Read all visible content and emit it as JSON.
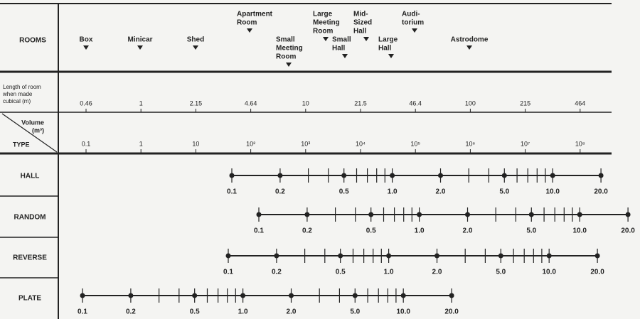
{
  "rooms_header": "ROOMS",
  "rooms": [
    [
      "Box"
    ],
    [
      "Minicar"
    ],
    [
      "Shed"
    ],
    [
      "Apartment",
      "Room"
    ],
    [
      "Small",
      "Meeting",
      "Room"
    ],
    [
      "Large",
      "Meeting",
      "Room"
    ],
    [
      "Small",
      "Hall"
    ],
    [
      "Mid-",
      "Sized",
      "Hall"
    ],
    [
      "Large",
      "Hall"
    ],
    [
      "Audi-",
      "torium"
    ],
    [
      "Astrodome"
    ]
  ],
  "length_header": [
    "Length of room",
    "when made",
    "cubical (m)"
  ],
  "lengths": [
    "0.46",
    "1",
    "2.15",
    "4.64",
    "10",
    "21.5",
    "46.4",
    "100",
    "215",
    "464"
  ],
  "type_header": {
    "volume": "Volume",
    "unit": "(m³)",
    "type": "TYPE"
  },
  "types": [
    "0.1",
    "1",
    "10",
    "10²",
    "10³",
    "10⁴",
    "10⁵",
    "10⁶",
    "10⁷",
    "10⁸"
  ],
  "scales": [
    {
      "name": "HALL",
      "labels": [
        "0.1",
        "0.2",
        "0.5",
        "1.0",
        "2.0",
        "5.0",
        "10.0",
        "20.0"
      ]
    },
    {
      "name": "RANDOM",
      "labels": [
        "0.1",
        "0.2",
        "0.5",
        "1.0",
        "2.0",
        "5.0",
        "10.0",
        "20.0"
      ]
    },
    {
      "name": "REVERSE",
      "labels": [
        "0.1",
        "0.2",
        "0.5",
        "1.0",
        "2.0",
        "5.0",
        "10.0",
        "20.0"
      ]
    },
    {
      "name": "PLATE",
      "labels": [
        "0.1",
        "0.2",
        "0.5",
        "1.0",
        "2.0",
        "5.0",
        "10.0",
        "20.0"
      ]
    }
  ]
}
